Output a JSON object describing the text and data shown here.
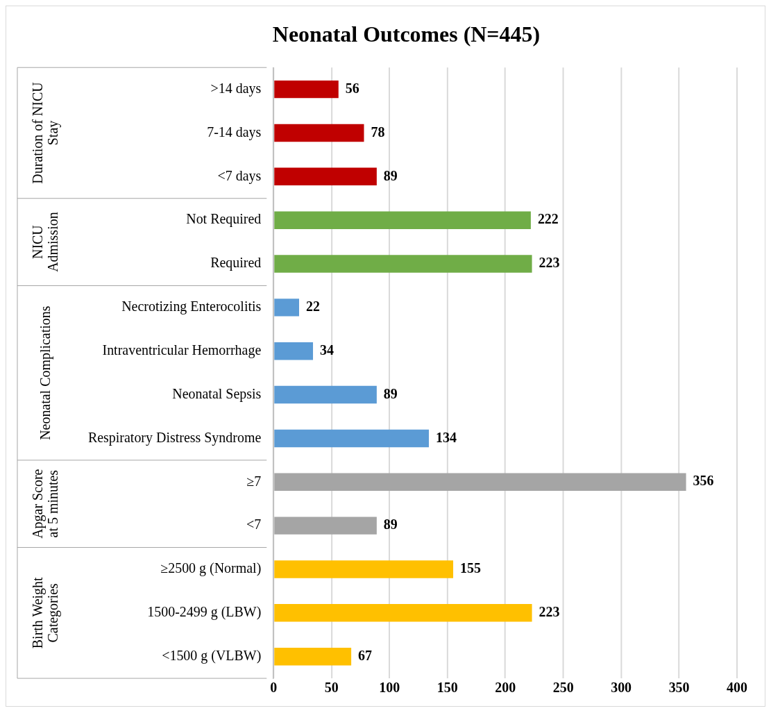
{
  "chart_data": {
    "type": "bar",
    "orientation": "horizontal",
    "title": "Neonatal Outcomes (N=445)",
    "categories": [
      ">14 days",
      "7-14 days",
      "<7 days",
      "Not Required",
      "Required",
      "Necrotizing Enterocolitis",
      "Intraventricular Hemorrhage",
      "Neonatal Sepsis",
      "Respiratory Distress Syndrome",
      "≥7",
      "<7",
      "≥2500 g (Normal)",
      "1500-2499 g (LBW)",
      "<1500 g (VLBW)"
    ],
    "values": [
      56,
      78,
      89,
      222,
      223,
      22,
      34,
      89,
      134,
      356,
      89,
      155,
      223,
      67
    ],
    "colors": [
      "#c00000",
      "#c00000",
      "#c00000",
      "#70ad47",
      "#70ad47",
      "#5b9bd5",
      "#5b9bd5",
      "#5b9bd5",
      "#5b9bd5",
      "#a5a5a5",
      "#a5a5a5",
      "#ffc000",
      "#ffc000",
      "#ffc000"
    ],
    "annotations": [
      "Duration of NICU Stay",
      "NICU Admission",
      "Neonatal Complications",
      "Apgar Score at 5 minutes",
      "Birth Weight Categories"
    ],
    "xlim": [
      0,
      400
    ],
    "xticks": [
      0,
      50,
      100,
      150,
      200,
      250,
      300,
      350,
      400
    ],
    "grid": "x",
    "data_labels": true,
    "legend": false
  }
}
